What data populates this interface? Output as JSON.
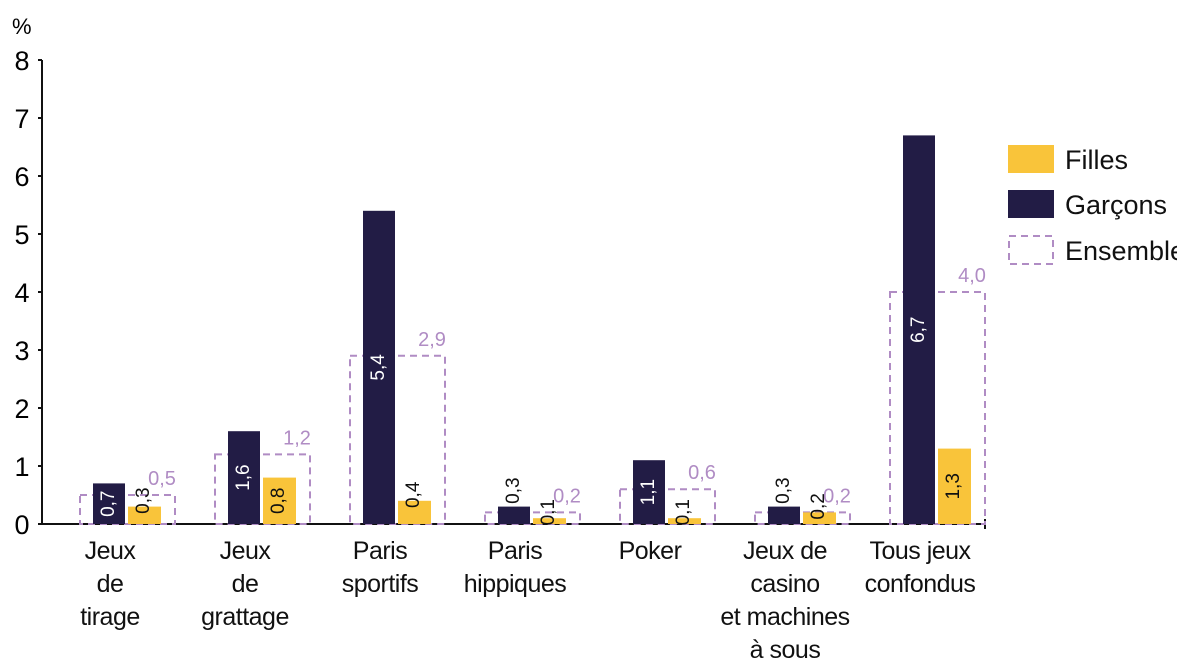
{
  "chart_data": {
    "type": "bar",
    "y_unit": "%",
    "categories": [
      "Jeux\nde\ntirage",
      "Jeux\nde\ngrattage",
      "Paris\nsportifs",
      "Paris\nhippiques",
      "Poker",
      "Jeux de\ncasino\net machines\nà sous",
      "Tous jeux\nconfondus"
    ],
    "series": [
      {
        "name": "Filles",
        "color": "#f9c43a",
        "values": [
          0.3,
          0.8,
          0.4,
          0.1,
          0.1,
          0.2,
          1.3
        ],
        "value_labels": [
          "0,3",
          "0,8",
          "0,4",
          "0,1",
          "0,1",
          "0,2",
          "1,3"
        ]
      },
      {
        "name": "Garçons",
        "color": "#221c45",
        "values": [
          0.7,
          1.6,
          5.4,
          0.3,
          1.1,
          0.3,
          6.7
        ],
        "value_labels": [
          "0,7",
          "1,6",
          "5,4",
          "0,3",
          "1,1",
          "0,3",
          "6,7"
        ]
      },
      {
        "name": "Ensemble",
        "color": "#b08cc4",
        "values": [
          0.5,
          1.2,
          2.9,
          0.2,
          0.6,
          0.2,
          4.0
        ],
        "value_labels": [
          "0,5",
          "1,2",
          "2,9",
          "0,2",
          "0,6",
          "0,2",
          "4,0"
        ]
      }
    ],
    "ylim": [
      0,
      8
    ],
    "yticks": [
      0,
      1,
      2,
      3,
      4,
      5,
      6,
      7,
      8
    ]
  }
}
